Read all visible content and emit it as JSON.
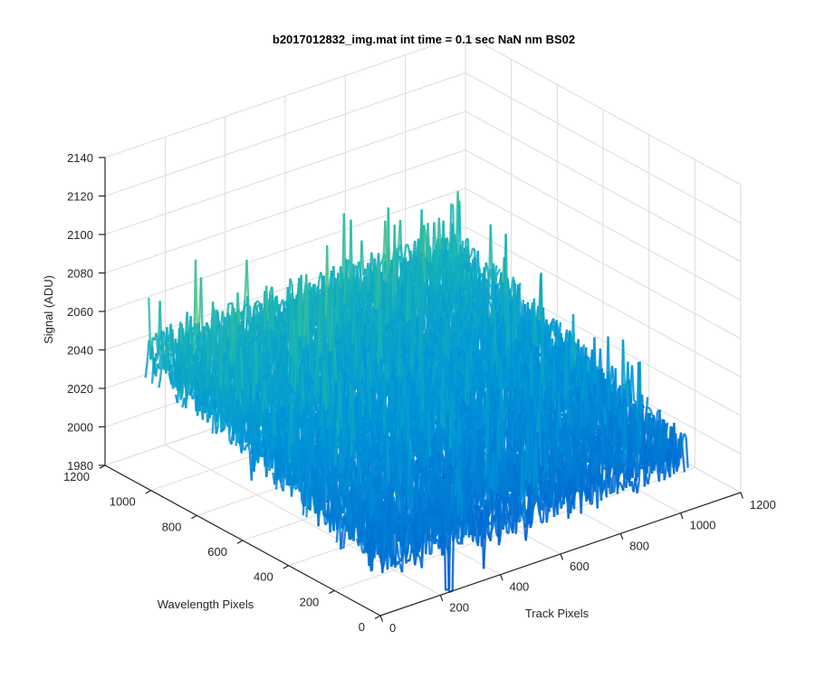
{
  "chart_data": {
    "type": "surface",
    "title": "b2017012832_img.mat int time = 0.1 sec  NaN nm BS02",
    "xlabel": "Track Pixels",
    "ylabel": "Wavelength Pixels",
    "zlabel": "Signal (ADU)",
    "xlim": [
      0,
      1200
    ],
    "ylim": [
      0,
      1200
    ],
    "zlim": [
      1980,
      2140
    ],
    "x_ticks": [
      "0",
      "200",
      "400",
      "600",
      "800",
      "1000",
      "1200"
    ],
    "y_ticks": [
      "0",
      "200",
      "400",
      "600",
      "800",
      "1000",
      "1200"
    ],
    "z_ticks": [
      "1980",
      "2000",
      "2020",
      "2040",
      "2060",
      "2080",
      "2100",
      "2120",
      "2140"
    ],
    "data_extent": {
      "x": [
        0,
        1024
      ],
      "y": [
        0,
        1024
      ]
    },
    "surface_summary": {
      "baseline_near_y0": 2010,
      "baseline_near_y1024": 2050,
      "noise_range": [
        1990,
        2110
      ],
      "max": 2115,
      "min_spike": {
        "x": 380,
        "y": 200,
        "z": 1960
      }
    },
    "grid": true,
    "colormap": "parula",
    "colors": {
      "low": "#0072bd",
      "mid": "#13b3b0",
      "high": "#e6c832",
      "axis": "#262626",
      "grid": "#dcdcdc"
    }
  }
}
